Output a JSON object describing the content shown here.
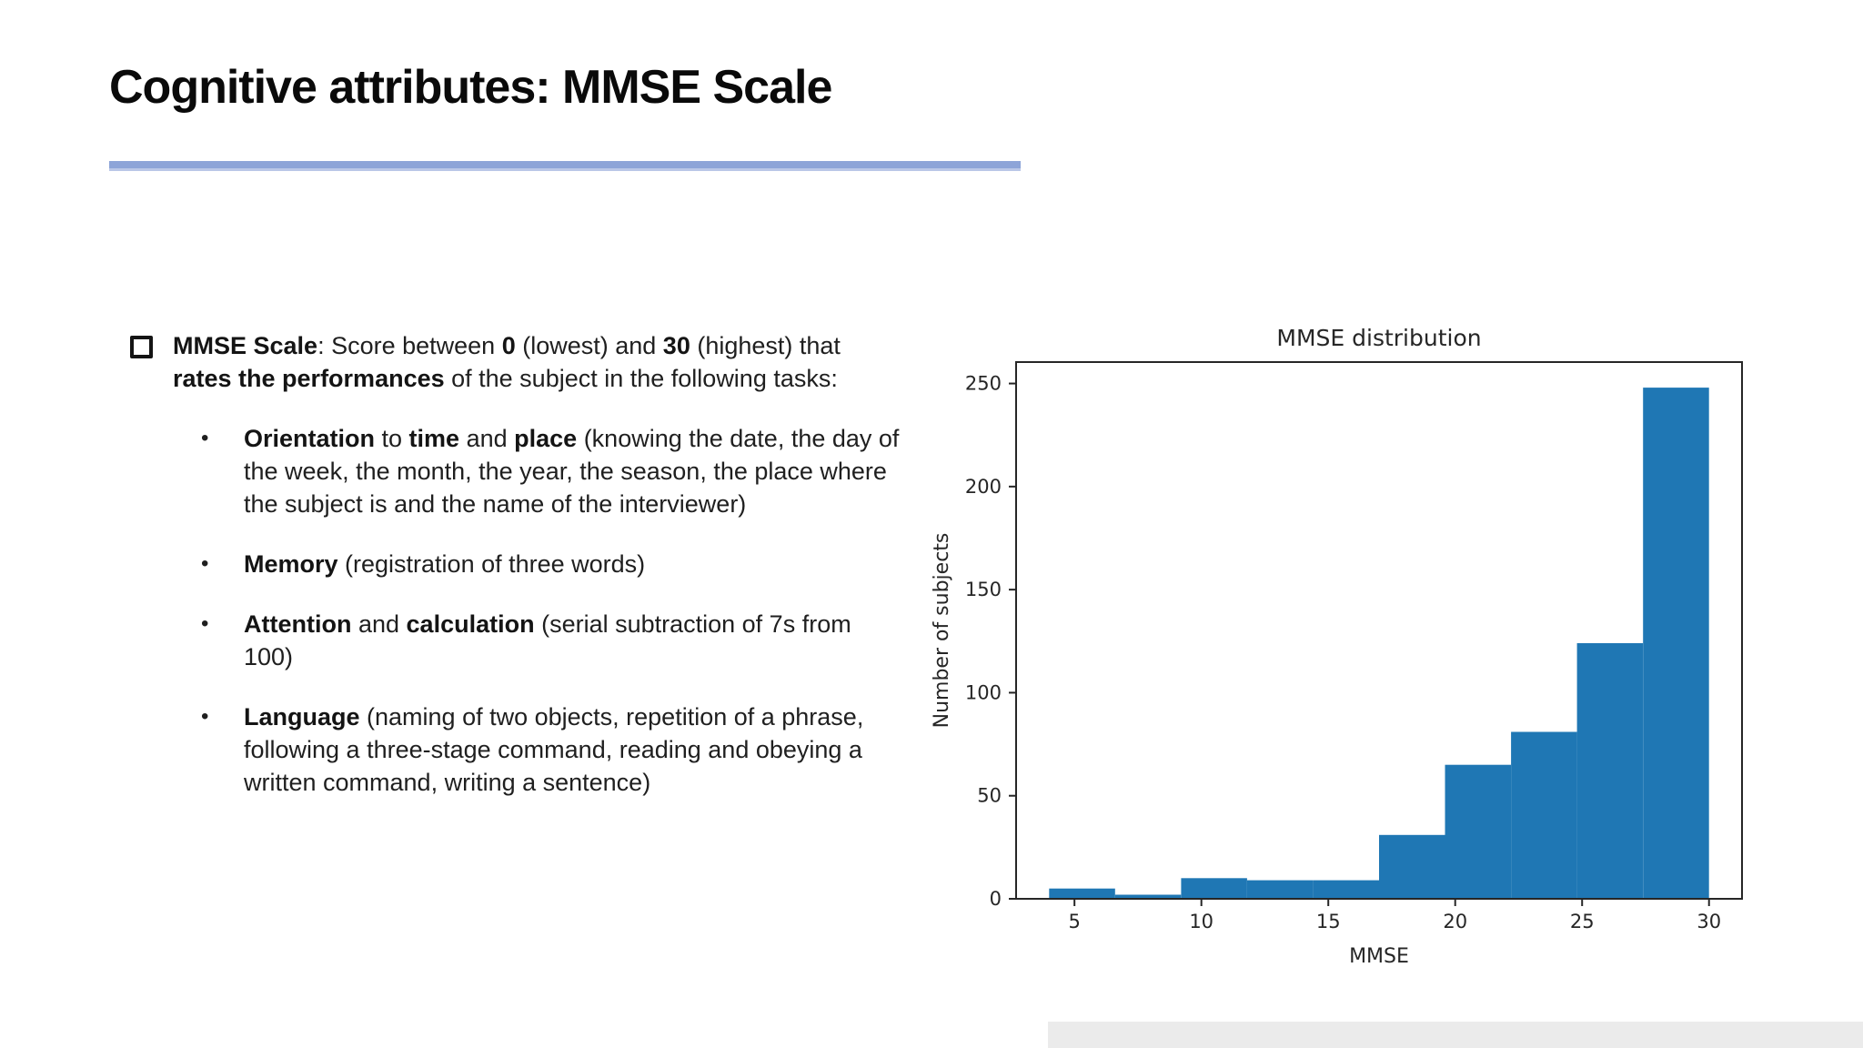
{
  "slide": {
    "title": "Cognitive attributes: MMSE Scale"
  },
  "bullets": {
    "items": [
      {
        "type": "main",
        "marker": "checkbox-square",
        "segments": [
          {
            "text": "MMSE Scale",
            "bold": true
          },
          {
            "text": ":  Score between ",
            "bold": false
          },
          {
            "text": "0",
            "bold": true
          },
          {
            "text": " (lowest) and ",
            "bold": false
          },
          {
            "text": "30",
            "bold": true
          },
          {
            "text": " (highest) that ",
            "bold": false
          },
          {
            "text": "rates the performances",
            "bold": true
          },
          {
            "text": " of the subject in the following tasks:",
            "bold": false
          }
        ]
      },
      {
        "type": "sub",
        "marker": "•",
        "segments": [
          {
            "text": "Orientation",
            "bold": true
          },
          {
            "text": " to ",
            "bold": false
          },
          {
            "text": "time",
            "bold": true
          },
          {
            "text": " and ",
            "bold": false
          },
          {
            "text": "place",
            "bold": true
          },
          {
            "text": " (knowing the date, the day of the week, the month, the year, the season, the place where the subject is and the name of the interviewer)",
            "bold": false
          }
        ]
      },
      {
        "type": "sub",
        "marker": "•",
        "segments": [
          {
            "text": "Memory",
            "bold": true
          },
          {
            "text": " (registration of three words)",
            "bold": false
          }
        ]
      },
      {
        "type": "sub",
        "marker": "•",
        "segments": [
          {
            "text": "Attention",
            "bold": true
          },
          {
            "text": " and ",
            "bold": false
          },
          {
            "text": "calculation",
            "bold": true
          },
          {
            "text": " (serial subtraction of 7s from 100)",
            "bold": false
          }
        ]
      },
      {
        "type": "sub",
        "marker": "•",
        "segments": [
          {
            "text": "Language",
            "bold": true
          },
          {
            "text": " (naming of two objects, repetition of a phrase, following a three-stage command, reading and obeying a written command, writing a sentence)",
            "bold": false
          }
        ]
      }
    ]
  },
  "chart_data": {
    "type": "bar",
    "subtype": "histogram",
    "title": "MMSE distribution",
    "xlabel": "MMSE",
    "ylabel": "Number of subjects",
    "bin_edges": [
      4.0,
      6.6,
      9.2,
      11.8,
      14.4,
      17.0,
      19.6,
      22.2,
      24.8,
      27.4,
      30.0
    ],
    "values": [
      5,
      2,
      10,
      9,
      9,
      31,
      65,
      81,
      124,
      248
    ],
    "xticks": [
      "5",
      "10",
      "15",
      "20",
      "25",
      "30"
    ],
    "xtick_values": [
      5,
      10,
      15,
      20,
      25,
      30
    ],
    "yticks": [
      "0",
      "50",
      "100",
      "150",
      "200",
      "250"
    ],
    "ytick_values": [
      0,
      50,
      100,
      150,
      200,
      250
    ],
    "xlim": [
      2.7,
      31.3
    ],
    "ylim": [
      0,
      260.4
    ],
    "grid": false,
    "legend": null,
    "bar_color": "#1f77b4",
    "axis_color": "#262626"
  }
}
